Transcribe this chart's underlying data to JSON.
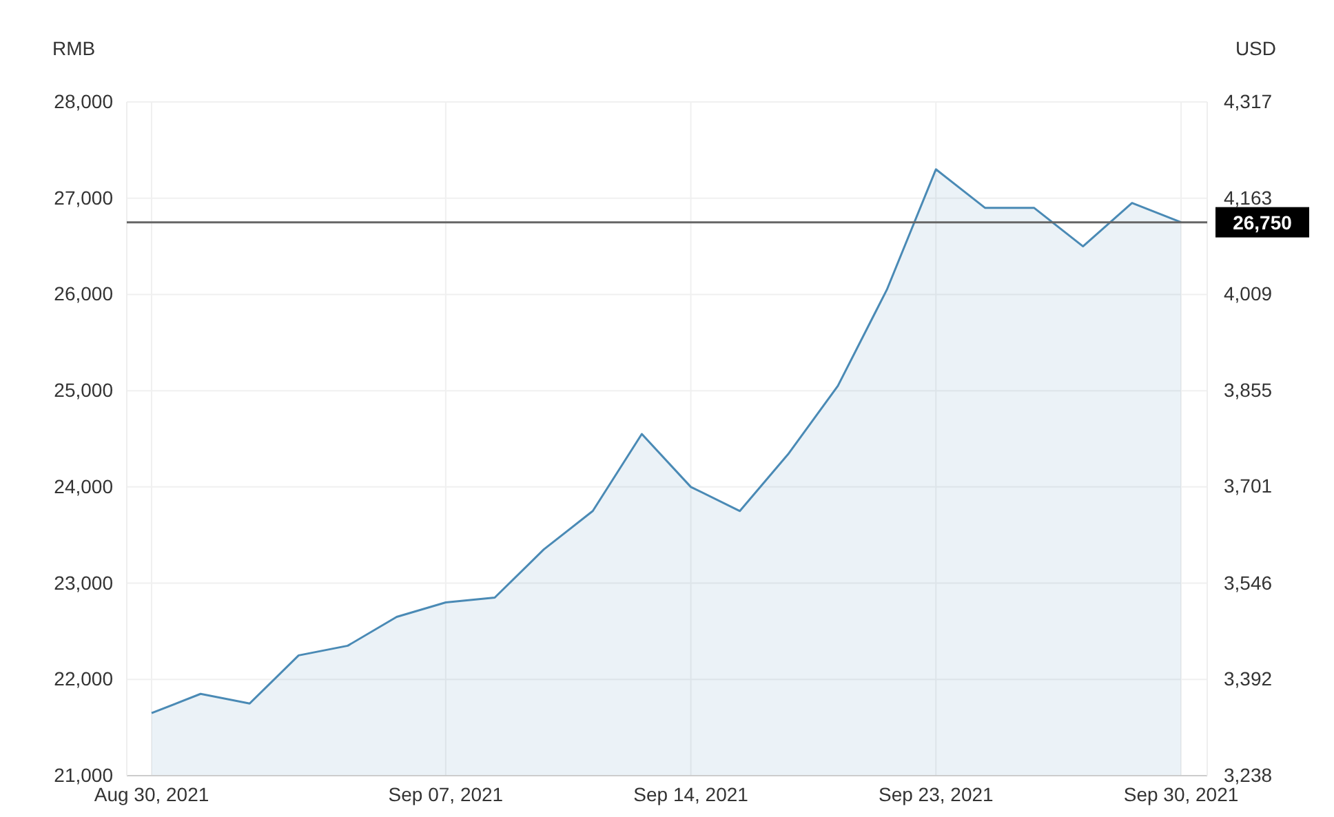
{
  "chart_data": {
    "type": "area",
    "ylabel": "RMB",
    "y2label": "USD",
    "categories": [
      "Aug 30, 2021",
      null,
      null,
      null,
      null,
      null,
      "Sep 07, 2021",
      null,
      null,
      null,
      null,
      "Sep 14, 2021",
      null,
      null,
      null,
      null,
      "Sep 23, 2021",
      null,
      null,
      null,
      null,
      "Sep 30, 2021"
    ],
    "series": [
      {
        "color": "#4a8ab5",
        "values": [
          21650,
          21850,
          21750,
          22250,
          22350,
          22650,
          22800,
          22850,
          23350,
          23750,
          24550,
          24000,
          23750,
          24350,
          25050,
          26050,
          27300,
          26900,
          26900,
          26500,
          26950,
          26750
        ]
      }
    ],
    "ylim": [
      21000,
      28000
    ],
    "yticks": [
      {
        "value": 21000,
        "label": "21,000"
      },
      {
        "value": 22000,
        "label": "22,000"
      },
      {
        "value": 23000,
        "label": "23,000"
      },
      {
        "value": 24000,
        "label": "24,000"
      },
      {
        "value": 25000,
        "label": "25,000"
      },
      {
        "value": 26000,
        "label": "26,000"
      },
      {
        "value": 27000,
        "label": "27,000"
      },
      {
        "value": 28000,
        "label": "28,000"
      }
    ],
    "y2lim": [
      3238,
      4317
    ],
    "y2ticks": [
      {
        "value": 3238,
        "label": "3,238"
      },
      {
        "value": 3392,
        "label": "3,392"
      },
      {
        "value": 3546,
        "label": "3,546"
      },
      {
        "value": 3701,
        "label": "3,701"
      },
      {
        "value": 3855,
        "label": "3,855"
      },
      {
        "value": 4009,
        "label": "4,009"
      },
      {
        "value": 4163,
        "label": "4,163"
      },
      {
        "value": 4317,
        "label": "4,317"
      }
    ],
    "ref_lines": [
      {
        "axis": "y",
        "value": 26750,
        "label": "26,750",
        "color": "#666666"
      }
    ],
    "grid": true,
    "marker": "none",
    "line_style": "solid"
  }
}
